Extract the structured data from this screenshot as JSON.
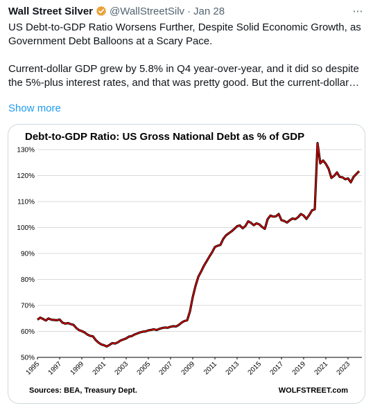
{
  "tweet": {
    "author_name": "Wall Street Silver",
    "handle": "@WallStreetSilv",
    "separator": "·",
    "date": "Jan 28",
    "more_icon": "⋯",
    "paragraph1": "US Debt-to-GDP Ratio Worsens Further, Despite Solid Economic Growth, as Government Debt Balloons at a Scary Pace.",
    "paragraph2": "Current-dollar GDP grew by 5.8% in Q4 year-over-year, and it did so despite the 5%-plus interest rates, and that was pretty good.  But the current-dollar…",
    "show_more": "Show more",
    "colors": {
      "link": "#1d9bf0",
      "verified": "#e8a33c",
      "text": "#0f1419",
      "muted": "#536471"
    }
  },
  "chart_data": {
    "type": "line",
    "title": "Debt-to-GDP Ratio: US Gross National Debt as % of GDP",
    "xlabel": "",
    "ylabel": "",
    "ylim": [
      50,
      130
    ],
    "xlim": [
      1995,
      2024.25
    ],
    "y_ticks": [
      "50%",
      "60%",
      "70%",
      "80%",
      "90%",
      "100%",
      "110%",
      "120%",
      "130%"
    ],
    "y_tick_values": [
      50,
      60,
      70,
      80,
      90,
      100,
      110,
      120,
      130
    ],
    "x_ticks": [
      "1995",
      "1997",
      "1999",
      "2001",
      "2003",
      "2005",
      "2007",
      "2009",
      "2011",
      "2013",
      "2015",
      "2017",
      "2019",
      "2021",
      "2023"
    ],
    "x_tick_values": [
      1995,
      1997,
      1999,
      2001,
      2003,
      2005,
      2007,
      2009,
      2011,
      2013,
      2015,
      2017,
      2019,
      2021,
      2023
    ],
    "grid": true,
    "line_color": "#cc0000",
    "source_left": "Sources: BEA, Treasury Dept.",
    "source_right": "WOLFSTREET.com",
    "series": [
      {
        "x": [
          1995.0,
          1995.25,
          1995.5,
          1995.75,
          1996.0,
          1996.25,
          1996.5,
          1996.75,
          1997.0,
          1997.25,
          1997.5,
          1997.75,
          1998.0,
          1998.25,
          1998.5,
          1998.75,
          1999.0,
          1999.25,
          1999.5,
          1999.75,
          2000.0,
          2000.25,
          2000.5,
          2000.75,
          2001.0,
          2001.25,
          2001.5,
          2001.75,
          2002.0,
          2002.25,
          2002.5,
          2002.75,
          2003.0,
          2003.25,
          2003.5,
          2003.75,
          2004.0,
          2004.25,
          2004.5,
          2004.75,
          2005.0,
          2005.25,
          2005.5,
          2005.75,
          2006.0,
          2006.25,
          2006.5,
          2006.75,
          2007.0,
          2007.25,
          2007.5,
          2007.75,
          2008.0,
          2008.25,
          2008.5,
          2008.75,
          2009.0,
          2009.25,
          2009.5,
          2009.75,
          2010.0,
          2010.25,
          2010.5,
          2010.75,
          2011.0,
          2011.25,
          2011.5,
          2011.75,
          2012.0,
          2012.25,
          2012.5,
          2012.75,
          2013.0,
          2013.25,
          2013.5,
          2013.75,
          2014.0,
          2014.25,
          2014.5,
          2014.75,
          2015.0,
          2015.25,
          2015.5,
          2015.75,
          2016.0,
          2016.25,
          2016.5,
          2016.75,
          2017.0,
          2017.25,
          2017.5,
          2017.75,
          2018.0,
          2018.25,
          2018.5,
          2018.75,
          2019.0,
          2019.25,
          2019.5,
          2019.75,
          2020.0,
          2020.25,
          2020.5,
          2020.75,
          2021.0,
          2021.25,
          2021.5,
          2021.75,
          2022.0,
          2022.25,
          2022.5,
          2022.75,
          2023.0,
          2023.25,
          2023.5,
          2023.75,
          2024.0
        ],
        "values": [
          64.5,
          65.3,
          64.8,
          64.2,
          65.0,
          64.5,
          64.4,
          64.3,
          64.6,
          63.4,
          63.0,
          63.2,
          62.8,
          62.5,
          61.3,
          60.5,
          60.1,
          59.6,
          58.8,
          58.3,
          58.1,
          56.7,
          55.7,
          55.0,
          54.7,
          54.2,
          54.8,
          55.5,
          55.3,
          55.8,
          56.5,
          56.9,
          57.3,
          58.0,
          58.2,
          58.8,
          59.2,
          59.6,
          59.9,
          60.0,
          60.4,
          60.6,
          60.8,
          60.5,
          61.0,
          61.3,
          61.5,
          61.4,
          61.8,
          62.0,
          61.9,
          62.5,
          63.4,
          64.0,
          64.3,
          67.7,
          73.2,
          77.5,
          81.0,
          83.0,
          85.2,
          87.0,
          88.8,
          90.5,
          92.5,
          93.0,
          93.3,
          95.6,
          97.0,
          97.8,
          98.5,
          99.5,
          100.5,
          100.8,
          99.7,
          100.6,
          102.4,
          101.8,
          100.9,
          101.6,
          101.2,
          100.2,
          99.5,
          103.2,
          104.6,
          104.2,
          104.3,
          105.2,
          102.8,
          102.5,
          101.9,
          102.8,
          103.5,
          103.2,
          104.0,
          105.2,
          104.6,
          103.3,
          104.8,
          106.6,
          107.0,
          132.5,
          124.7,
          125.8,
          124.5,
          122.6,
          119.1,
          119.9,
          121.2,
          119.5,
          119.3,
          118.6,
          118.9,
          117.4,
          119.5,
          120.6,
          121.7
        ]
      }
    ]
  }
}
